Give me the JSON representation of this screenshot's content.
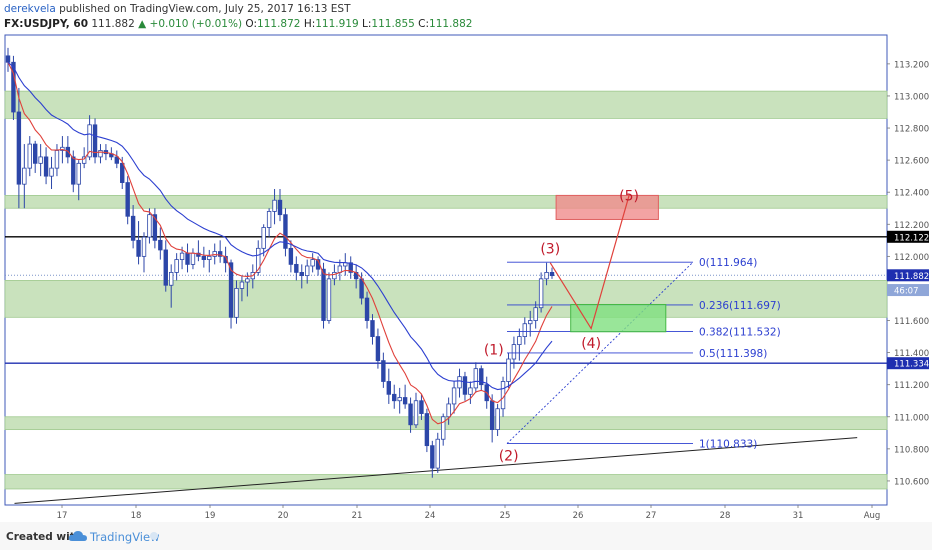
{
  "header": {
    "author": "derekvela",
    "published_text": "published on TradingView.com, July 25, 2017 16:13 EST",
    "symbol": "FX:USDJPY, 60",
    "last": "111.882",
    "change": "▲ +0.010 (+0.01%)",
    "o_label": "O:",
    "o_value": "111.872",
    "h_label": "H:",
    "h_value": "111.919",
    "l_label": "L:",
    "l_value": "111.855",
    "c_label": "C:",
    "c_value": "111.882"
  },
  "footer": {
    "created_with": "Created with",
    "brand": "TradingView"
  },
  "colors": {
    "zone": "#c9e2bd",
    "zone_border": "#9fc98e",
    "bull": "#2c46a8",
    "bear": "#2c46a8",
    "ma_red": "#e0413b",
    "ma_blue": "#2c3fd0",
    "fib": "#2c3fd0",
    "wave": "#c0192a",
    "target_red": "#f08c8c",
    "target_green": "#7fe07f",
    "axis_text": "#555555"
  },
  "chart_data": {
    "type": "candlestick",
    "symbol": "FX:USDJPY",
    "timeframe": "60",
    "x_tick_labels": [
      "17",
      "18",
      "19",
      "20",
      "21",
      "24",
      "25",
      "26",
      "27",
      "28",
      "31",
      "Aug"
    ],
    "y_ticks": [
      110.6,
      110.8,
      111.0,
      111.2,
      111.4,
      111.6,
      111.8,
      112.0,
      112.2,
      112.4,
      112.6,
      112.8,
      113.0,
      113.2
    ],
    "y_tick_labels": [
      "110.600",
      "110.800",
      "111.000",
      "111.200",
      "111.400",
      "111.600",
      "111.800",
      "112.000",
      "112.200",
      "112.400",
      "112.600",
      "112.800",
      "113.000",
      "113.200"
    ],
    "ylim": [
      110.45,
      113.38
    ],
    "price_labels": [
      {
        "text": "112.122",
        "value": 112.122,
        "style": "black"
      },
      {
        "text": "111.882",
        "value": 111.882,
        "style": "blue"
      },
      {
        "text": "46:07",
        "value": 111.79,
        "style": "blue"
      },
      {
        "text": "111.334",
        "value": 111.334,
        "style": "blue"
      }
    ],
    "horizontal_lines": [
      {
        "value": 112.122,
        "color": "#000000"
      },
      {
        "value": 111.334,
        "color": "#1f2fb0"
      },
      {
        "value": 111.882,
        "color": "#7b93c9",
        "style": "dotted"
      }
    ],
    "zones": [
      {
        "from": 112.86,
        "to": 113.03
      },
      {
        "from": 112.3,
        "to": 112.38
      },
      {
        "from": 111.62,
        "to": 111.85
      },
      {
        "from": 110.92,
        "to": 111.0
      },
      {
        "from": 110.55,
        "to": 110.64
      }
    ],
    "candles": [
      [
        113.25,
        113.3,
        113.15,
        113.21
      ],
      [
        113.21,
        113.25,
        112.85,
        112.9
      ],
      [
        112.9,
        113.05,
        112.3,
        112.45
      ],
      [
        112.45,
        112.7,
        112.3,
        112.55
      ],
      [
        112.55,
        112.75,
        112.5,
        112.7
      ],
      [
        112.7,
        112.72,
        112.52,
        112.58
      ],
      [
        112.58,
        112.7,
        112.5,
        112.62
      ],
      [
        112.62,
        112.68,
        112.45,
        112.5
      ],
      [
        112.5,
        112.62,
        112.42,
        112.55
      ],
      [
        112.55,
        112.7,
        112.5,
        112.66
      ],
      [
        112.66,
        112.75,
        112.58,
        112.68
      ],
      [
        112.68,
        112.75,
        112.58,
        112.62
      ],
      [
        112.62,
        112.66,
        112.4,
        112.45
      ],
      [
        112.45,
        112.6,
        112.35,
        112.58
      ],
      [
        112.58,
        112.68,
        112.55,
        112.62
      ],
      [
        112.62,
        112.88,
        112.6,
        112.82
      ],
      [
        112.82,
        112.86,
        112.58,
        112.62
      ],
      [
        112.62,
        112.7,
        112.58,
        112.66
      ],
      [
        112.66,
        112.7,
        112.6,
        112.64
      ],
      [
        112.64,
        112.68,
        112.6,
        112.62
      ],
      [
        112.62,
        112.66,
        112.55,
        112.58
      ],
      [
        112.58,
        112.62,
        112.42,
        112.46
      ],
      [
        112.46,
        112.5,
        112.2,
        112.25
      ],
      [
        112.25,
        112.32,
        112.05,
        112.1
      ],
      [
        112.1,
        112.22,
        111.95,
        112.0
      ],
      [
        112.0,
        112.15,
        111.9,
        112.12
      ],
      [
        112.12,
        112.3,
        112.08,
        112.26
      ],
      [
        112.26,
        112.3,
        112.05,
        112.1
      ],
      [
        112.1,
        112.18,
        111.98,
        112.04
      ],
      [
        112.04,
        112.1,
        111.78,
        111.82
      ],
      [
        111.82,
        111.95,
        111.68,
        111.9
      ],
      [
        111.9,
        112.02,
        111.85,
        111.98
      ],
      [
        111.98,
        112.06,
        111.92,
        112.02
      ],
      [
        112.02,
        112.08,
        111.9,
        111.95
      ],
      [
        111.95,
        112.05,
        111.92,
        112.02
      ],
      [
        112.02,
        112.1,
        111.97,
        112.0
      ],
      [
        112.0,
        112.06,
        111.93,
        111.98
      ],
      [
        111.98,
        112.04,
        111.9,
        112.0
      ],
      [
        112.0,
        112.08,
        111.95,
        112.03
      ],
      [
        112.03,
        112.1,
        111.96,
        112.0
      ],
      [
        112.0,
        112.06,
        111.9,
        111.96
      ],
      [
        111.96,
        111.98,
        111.55,
        111.62
      ],
      [
        111.62,
        111.85,
        111.58,
        111.8
      ],
      [
        111.8,
        111.88,
        111.72,
        111.84
      ],
      [
        111.84,
        111.9,
        111.75,
        111.86
      ],
      [
        111.86,
        111.95,
        111.8,
        111.9
      ],
      [
        111.9,
        112.1,
        111.88,
        112.05
      ],
      [
        112.05,
        112.2,
        112.0,
        112.18
      ],
      [
        112.18,
        112.3,
        112.12,
        112.28
      ],
      [
        112.28,
        112.42,
        112.2,
        112.35
      ],
      [
        112.35,
        112.42,
        112.22,
        112.26
      ],
      [
        112.26,
        112.3,
        112.0,
        112.05
      ],
      [
        112.05,
        112.1,
        111.9,
        111.95
      ],
      [
        111.95,
        112.0,
        111.85,
        111.9
      ],
      [
        111.9,
        111.95,
        111.8,
        111.88
      ],
      [
        111.88,
        111.98,
        111.83,
        111.94
      ],
      [
        111.94,
        112.02,
        111.9,
        111.98
      ],
      [
        111.98,
        112.0,
        111.88,
        111.92
      ],
      [
        111.92,
        111.96,
        111.55,
        111.6
      ],
      [
        111.6,
        111.9,
        111.58,
        111.86
      ],
      [
        111.86,
        111.95,
        111.82,
        111.9
      ],
      [
        111.9,
        111.98,
        111.85,
        111.94
      ],
      [
        111.94,
        112.02,
        111.88,
        111.96
      ],
      [
        111.96,
        112.0,
        111.86,
        111.9
      ],
      [
        111.9,
        111.95,
        111.8,
        111.86
      ],
      [
        111.86,
        111.9,
        111.7,
        111.74
      ],
      [
        111.74,
        111.78,
        111.55,
        111.6
      ],
      [
        111.6,
        111.64,
        111.45,
        111.5
      ],
      [
        111.5,
        111.55,
        111.3,
        111.35
      ],
      [
        111.35,
        111.4,
        111.18,
        111.22
      ],
      [
        111.22,
        111.3,
        111.08,
        111.14
      ],
      [
        111.14,
        111.2,
        111.05,
        111.1
      ],
      [
        111.1,
        111.18,
        111.02,
        111.12
      ],
      [
        111.12,
        111.2,
        111.05,
        111.08
      ],
      [
        111.08,
        111.12,
        110.9,
        110.95
      ],
      [
        110.95,
        111.15,
        110.93,
        111.1
      ],
      [
        111.1,
        111.14,
        110.98,
        111.02
      ],
      [
        111.02,
        111.05,
        110.78,
        110.82
      ],
      [
        110.82,
        110.85,
        110.62,
        110.68
      ],
      [
        110.68,
        110.9,
        110.65,
        110.86
      ],
      [
        110.86,
        111.02,
        110.82,
        111.0
      ],
      [
        111.0,
        111.12,
        110.95,
        111.08
      ],
      [
        111.08,
        111.22,
        111.02,
        111.18
      ],
      [
        111.18,
        111.3,
        111.12,
        111.25
      ],
      [
        111.25,
        111.28,
        111.1,
        111.14
      ],
      [
        111.14,
        111.22,
        111.08,
        111.18
      ],
      [
        111.18,
        111.34,
        111.15,
        111.3
      ],
      [
        111.3,
        111.32,
        111.16,
        111.2
      ],
      [
        111.2,
        111.25,
        111.05,
        111.1
      ],
      [
        111.1,
        111.14,
        110.84,
        110.92
      ],
      [
        110.92,
        111.08,
        110.88,
        111.05
      ],
      [
        111.05,
        111.25,
        111.0,
        111.22
      ],
      [
        111.22,
        111.4,
        111.18,
        111.36
      ],
      [
        111.36,
        111.5,
        111.3,
        111.45
      ],
      [
        111.45,
        111.55,
        111.35,
        111.5
      ],
      [
        111.5,
        111.62,
        111.45,
        111.58
      ],
      [
        111.58,
        111.66,
        111.5,
        111.6
      ],
      [
        111.6,
        111.72,
        111.55,
        111.68
      ],
      [
        111.68,
        111.9,
        111.65,
        111.86
      ],
      [
        111.86,
        111.96,
        111.82,
        111.9
      ],
      [
        111.9,
        111.93,
        111.86,
        111.88
      ]
    ],
    "moving_averages": [
      {
        "name": "",
        "color": "#e0413b",
        "period": 8
      },
      {
        "name": "",
        "color": "#2c3fd0",
        "period": 21
      }
    ],
    "fibonacci": {
      "levels": [
        {
          "label": "0(111.964)",
          "value": 111.964
        },
        {
          "label": "0.236(111.697)",
          "value": 111.697
        },
        {
          "label": "0.382(111.532)",
          "value": 111.532
        },
        {
          "label": "0.5(111.398)",
          "value": 111.398
        },
        {
          "label": "1(110.833)",
          "value": 110.833
        }
      ]
    },
    "elliott_waves": [
      {
        "label": "(1)",
        "x_day": 24.85,
        "value": 111.34,
        "label_value": 111.42
      },
      {
        "label": "(2)",
        "x_day": 25.05,
        "value": 110.84,
        "label_value": 110.76
      },
      {
        "label": "(3)",
        "x_day": 25.62,
        "value": 111.96,
        "label_value": 112.05
      },
      {
        "label": "(4)",
        "x_day": 26.18,
        "value": 111.55,
        "label_value": 111.46
      },
      {
        "label": "(5)",
        "x_day": 26.7,
        "value": 112.38,
        "label_value": 112.38
      }
    ],
    "target_boxes": [
      {
        "color": "red",
        "x_from_day": 25.7,
        "x_to_day": 27.1,
        "from": 112.23,
        "to": 112.38
      },
      {
        "color": "green",
        "x_from_day": 25.9,
        "x_to_day": 27.2,
        "from": 111.53,
        "to": 111.7
      }
    ],
    "trendline": {
      "from_day": 16.5,
      "from": 110.46,
      "to_day": 31.8,
      "to": 110.87
    }
  }
}
